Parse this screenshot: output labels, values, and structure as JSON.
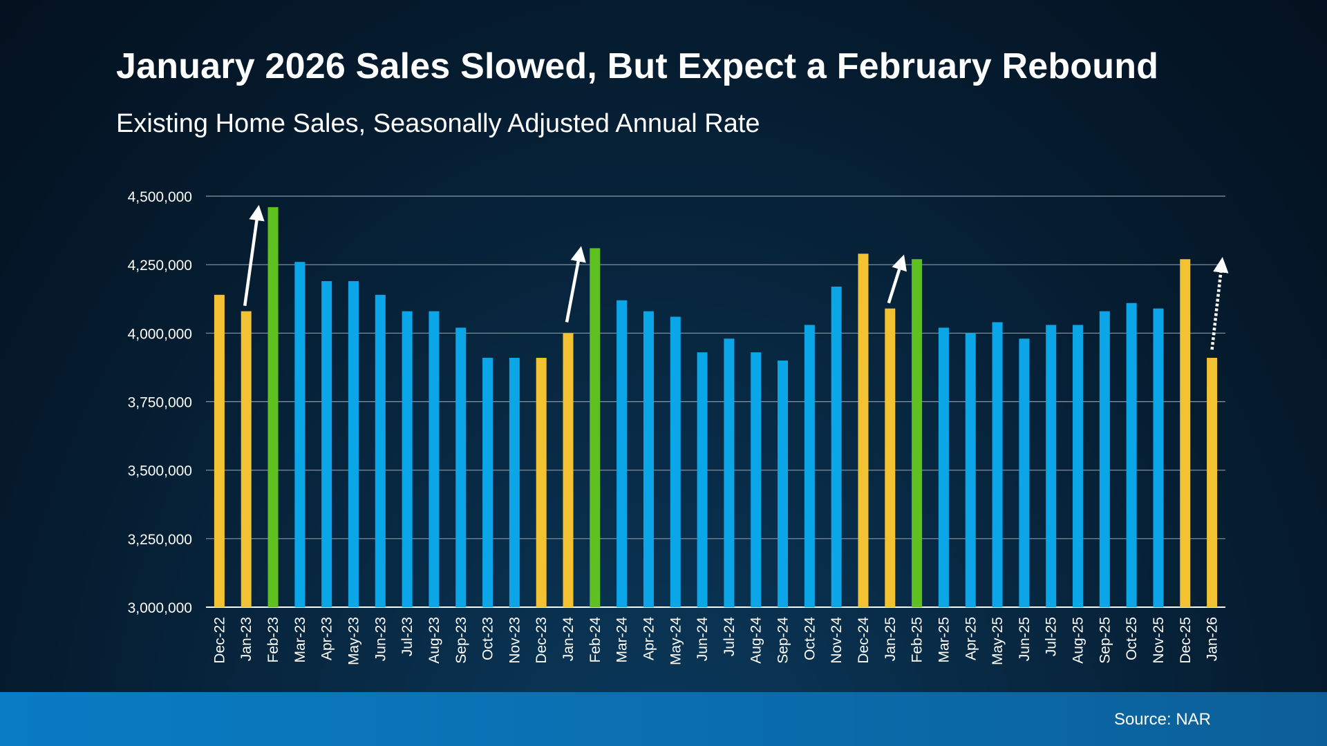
{
  "title": "January 2026 Sales Slowed, But Expect a February Rebound",
  "subtitle": "Existing Home Sales, Seasonally Adjusted Annual Rate",
  "source": "Source: NAR",
  "colors": {
    "yellow": "#f3c233",
    "green": "#5fc11f",
    "blue": "#0aa6e8",
    "grid": "#8a98a8",
    "axis": "#ffffff",
    "arrow": "#ffffff"
  },
  "chart_data": {
    "type": "bar",
    "ylim": [
      3000000,
      4500000
    ],
    "yticks": [
      "3,000,000",
      "3,250,000",
      "3,500,000",
      "3,750,000",
      "4,000,000",
      "4,250,000",
      "4,500,000"
    ],
    "ytick_values": [
      3000000,
      3250000,
      3500000,
      3750000,
      4000000,
      4250000,
      4500000
    ],
    "grid": true,
    "categories": [
      "Dec-22",
      "Jan-23",
      "Feb-23",
      "Mar-23",
      "Apr-23",
      "May-23",
      "Jun-23",
      "Jul-23",
      "Aug-23",
      "Sep-23",
      "Oct-23",
      "Nov-23",
      "Dec-23",
      "Jan-24",
      "Feb-24",
      "Mar-24",
      "Apr-24",
      "May-24",
      "Jun-24",
      "Jul-24",
      "Aug-24",
      "Sep-24",
      "Oct-24",
      "Nov-24",
      "Dec-24",
      "Jan-25",
      "Feb-25",
      "Mar-25",
      "Apr-25",
      "May-25",
      "Jun-25",
      "Jul-25",
      "Aug-25",
      "Sep-25",
      "Oct-25",
      "Nov-25",
      "Dec-25",
      "Jan-26"
    ],
    "values": [
      4140000,
      4080000,
      4460000,
      4260000,
      4190000,
      4190000,
      4140000,
      4080000,
      4080000,
      4020000,
      3910000,
      3910000,
      3910000,
      4000000,
      4310000,
      4120000,
      4080000,
      4060000,
      3930000,
      3980000,
      3930000,
      3900000,
      4030000,
      4170000,
      4290000,
      4090000,
      4270000,
      4020000,
      4000000,
      4040000,
      3980000,
      4030000,
      4030000,
      4080000,
      4110000,
      4090000,
      4270000,
      3910000
    ],
    "bar_colors": [
      "yellow",
      "yellow",
      "green",
      "blue",
      "blue",
      "blue",
      "blue",
      "blue",
      "blue",
      "blue",
      "blue",
      "blue",
      "yellow",
      "yellow",
      "green",
      "blue",
      "blue",
      "blue",
      "blue",
      "blue",
      "blue",
      "blue",
      "blue",
      "blue",
      "yellow",
      "yellow",
      "green",
      "blue",
      "blue",
      "blue",
      "blue",
      "blue",
      "blue",
      "blue",
      "blue",
      "blue",
      "yellow",
      "yellow"
    ],
    "annotations": [
      {
        "type": "arrow",
        "style": "solid",
        "from": {
          "x": "Jan-23",
          "y": 4100000
        },
        "to": {
          "x": "Feb-23",
          "y": 4440000
        }
      },
      {
        "type": "arrow",
        "style": "solid",
        "from": {
          "x": "Jan-24",
          "y": 4040000
        },
        "to": {
          "x": "Feb-24",
          "y": 4290000
        }
      },
      {
        "type": "arrow",
        "style": "solid",
        "from": {
          "x": "Jan-25",
          "y": 4110000
        },
        "to": {
          "x": "Feb-25",
          "y": 4260000
        }
      },
      {
        "type": "arrow",
        "style": "dotted",
        "from": {
          "x": "Jan-26",
          "y": 3940000
        },
        "to": {
          "x": "Jan-26",
          "y": 4250000
        }
      }
    ]
  }
}
